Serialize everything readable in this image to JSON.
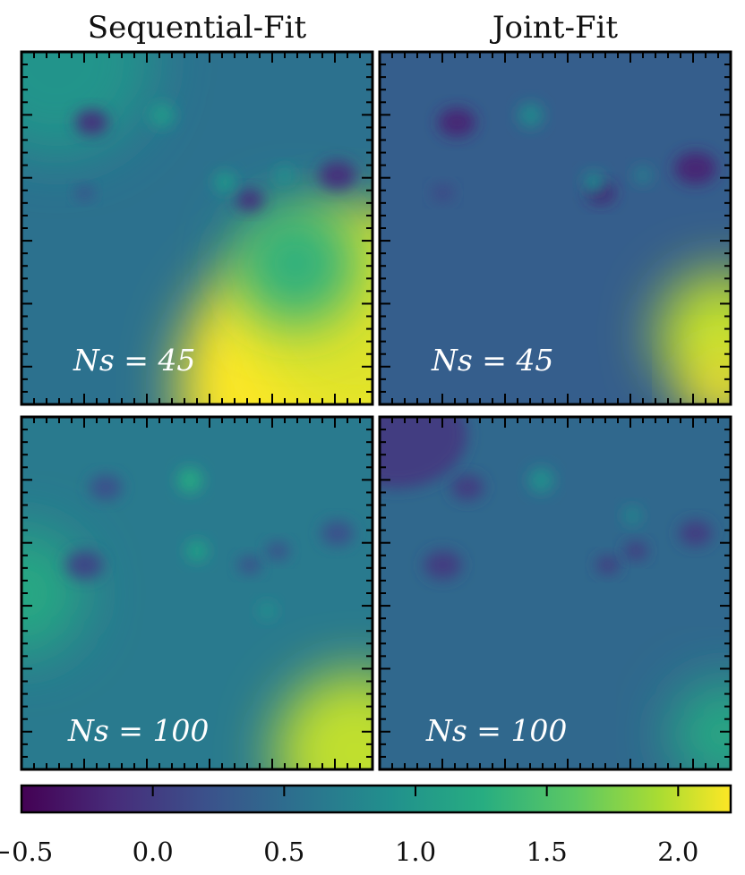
{
  "chart_data": {
    "type": "heatmap",
    "column_titles": [
      "Sequential-Fit",
      "Joint-Fit"
    ],
    "panels": [
      {
        "row": 0,
        "col": 0,
        "method": "Sequential-Fit",
        "label": "N_s = 45",
        "label_text": "Ns = 45",
        "N_s": 45
      },
      {
        "row": 0,
        "col": 1,
        "method": "Joint-Fit",
        "label": "N_s = 45",
        "label_text": "Ns = 45",
        "N_s": 45
      },
      {
        "row": 1,
        "col": 0,
        "method": "Sequential-Fit",
        "label": "N_s = 100",
        "label_text": "Ns = 100",
        "N_s": 100
      },
      {
        "row": 1,
        "col": 1,
        "method": "Joint-Fit",
        "label": "N_s = 100",
        "label_text": "Ns = 100",
        "N_s": 100
      }
    ],
    "colorbar": {
      "colormap": "viridis",
      "range": [
        -0.5,
        2.2
      ],
      "ticks": [
        -0.5,
        0.0,
        0.5,
        1.0,
        1.5,
        2.0
      ],
      "tick_labels": [
        "−0.5",
        "0.0",
        "0.5",
        "1.0",
        "1.5",
        "2.0"
      ],
      "orientation": "horizontal",
      "placement": "bottom"
    },
    "grid": false
  }
}
